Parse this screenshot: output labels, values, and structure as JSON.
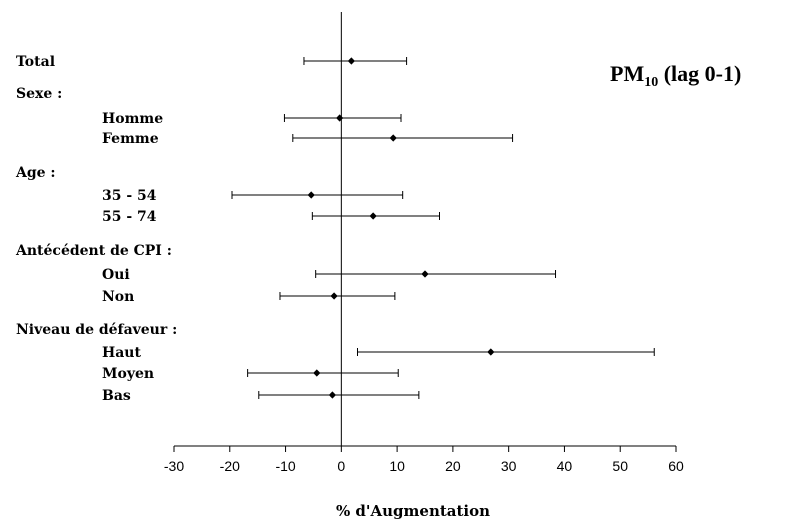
{
  "chart_data": {
    "type": "forest",
    "title": "PM10 (lag 0-1)",
    "title_main": "PM",
    "title_sub": "10",
    "title_rest": " (lag 0-1)",
    "xlabel": "% d'Augmentation",
    "xlim": [
      -30,
      60
    ],
    "xticks": [
      -30,
      -20,
      -10,
      0,
      10,
      20,
      30,
      40,
      50,
      60
    ],
    "reference_line": 0,
    "groups": [
      {
        "label": "Total",
        "rows": [
          {
            "label": "Total",
            "est": 1.8,
            "lo": -6.7,
            "hi": 11.7
          }
        ]
      },
      {
        "label": "Sexe :",
        "rows": [
          {
            "label": "Homme",
            "est": -0.3,
            "lo": -10.2,
            "hi": 10.7
          },
          {
            "label": "Femme",
            "est": 9.3,
            "lo": -8.7,
            "hi": 30.7
          }
        ]
      },
      {
        "label": "Age :",
        "rows": [
          {
            "label": "35 - 54",
            "est": -5.4,
            "lo": -19.6,
            "hi": 11.0
          },
          {
            "label": "55 - 74",
            "est": 5.7,
            "lo": -5.2,
            "hi": 17.6
          }
        ]
      },
      {
        "label": "Antécédent de CPI :",
        "rows": [
          {
            "label": "Oui",
            "est": 15.0,
            "lo": -4.6,
            "hi": 38.4
          },
          {
            "label": "Non",
            "est": -1.3,
            "lo": -11.0,
            "hi": 9.6
          }
        ]
      },
      {
        "label": "Niveau de défaveur :",
        "rows": [
          {
            "label": "Haut",
            "est": 26.8,
            "lo": 2.9,
            "hi": 56.1
          },
          {
            "label": "Moyen",
            "est": -4.4,
            "lo": -16.8,
            "hi": 10.2
          },
          {
            "label": "Bas",
            "est": -1.6,
            "lo": -14.8,
            "hi": 13.9
          }
        ]
      }
    ],
    "colors": {
      "marks": "#000000",
      "background": "#ffffff"
    }
  }
}
